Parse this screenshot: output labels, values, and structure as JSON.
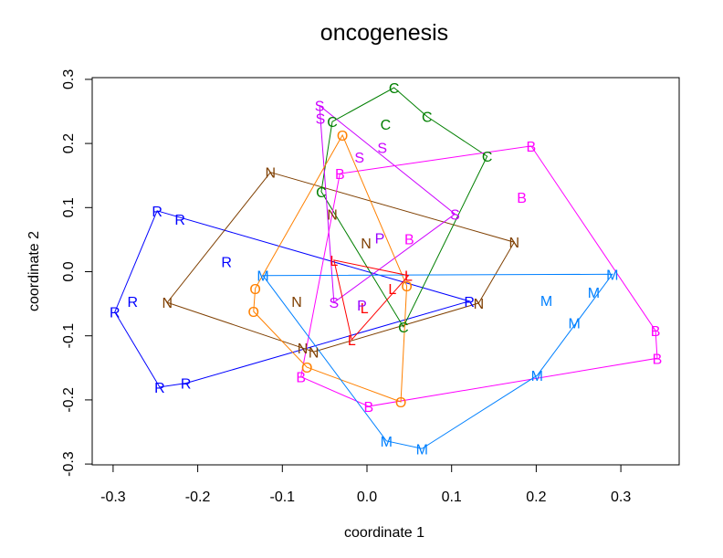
{
  "chart_data": {
    "type": "scatter",
    "title": "oncogenesis",
    "xlabel": "coordinate 1",
    "ylabel": "coordinate 2",
    "xlim": [
      -0.335,
      0.367
    ],
    "ylim": [
      -0.303,
      0.303
    ],
    "xticks": [
      -0.3,
      -0.2,
      -0.1,
      0.0,
      0.1,
      0.2,
      0.3
    ],
    "xtick_labels": [
      "-0.3",
      "-0.2",
      "-0.1",
      "0.0",
      "0.1",
      "0.2",
      "0.3"
    ],
    "yticks": [
      -0.3,
      -0.2,
      -0.1,
      0.0,
      0.1,
      0.2,
      0.3
    ],
    "ytick_labels": [
      "-0.3",
      "-0.2",
      "-0.1",
      "0.0",
      "0.1",
      "0.2",
      "0.3"
    ],
    "grid": false,
    "legend": "none",
    "series": [
      {
        "name": "R",
        "color": "#0000FF",
        "points": [
          [
            -0.248,
            0.095
          ],
          [
            -0.221,
            0.082
          ],
          [
            -0.166,
            0.016
          ],
          [
            -0.277,
            -0.046
          ],
          [
            -0.298,
            -0.063
          ],
          [
            -0.245,
            -0.18
          ],
          [
            -0.214,
            -0.174
          ],
          [
            0.121,
            -0.046
          ]
        ],
        "hull": [
          [
            -0.248,
            0.095
          ],
          [
            0.121,
            -0.046
          ],
          [
            -0.214,
            -0.174
          ],
          [
            -0.245,
            -0.18
          ],
          [
            -0.298,
            -0.063
          ]
        ]
      },
      {
        "name": "N",
        "color": "#7F3F00",
        "points": [
          [
            -0.114,
            0.155
          ],
          [
            0.174,
            0.046
          ],
          [
            0.132,
            -0.049
          ],
          [
            -0.236,
            -0.048
          ],
          [
            -0.076,
            -0.119
          ],
          [
            -0.063,
            -0.125
          ],
          [
            -0.041,
            0.09
          ],
          [
            -0.001,
            0.045
          ],
          [
            -0.083,
            -0.046
          ]
        ],
        "hull": [
          [
            -0.114,
            0.155
          ],
          [
            0.174,
            0.046
          ],
          [
            0.132,
            -0.049
          ],
          [
            -0.063,
            -0.125
          ],
          [
            -0.076,
            -0.119
          ],
          [
            -0.236,
            -0.048
          ]
        ]
      },
      {
        "name": "C",
        "color": "#007F00",
        "points": [
          [
            0.032,
            0.287
          ],
          [
            0.071,
            0.242
          ],
          [
            -0.041,
            0.234
          ],
          [
            0.022,
            0.23
          ],
          [
            0.142,
            0.18
          ],
          [
            -0.054,
            0.125
          ],
          [
            0.043,
            -0.086
          ]
        ],
        "hull": [
          [
            0.032,
            0.287
          ],
          [
            0.071,
            0.242
          ],
          [
            0.142,
            0.18
          ],
          [
            0.043,
            -0.086
          ],
          [
            -0.054,
            0.125
          ],
          [
            -0.041,
            0.234
          ]
        ]
      },
      {
        "name": "S",
        "color": "#CC00FF",
        "points": [
          [
            -0.056,
            0.259
          ],
          [
            -0.055,
            0.239
          ],
          [
            -0.009,
            0.179
          ],
          [
            0.018,
            0.194
          ],
          [
            0.104,
            0.09
          ],
          [
            -0.039,
            -0.048
          ]
        ],
        "hull": [
          [
            -0.056,
            0.259
          ],
          [
            0.104,
            0.09
          ],
          [
            -0.039,
            -0.048
          ],
          [
            -0.055,
            0.239
          ]
        ]
      },
      {
        "name": "B",
        "color": "#FF00FF",
        "points": [
          [
            -0.032,
            0.153
          ],
          [
            0.194,
            0.196
          ],
          [
            0.183,
            0.116
          ],
          [
            0.05,
            0.051
          ],
          [
            0.341,
            -0.092
          ],
          [
            0.343,
            -0.135
          ],
          [
            0.002,
            -0.21
          ],
          [
            -0.078,
            -0.164
          ]
        ],
        "hull": [
          [
            -0.032,
            0.153
          ],
          [
            0.194,
            0.196
          ],
          [
            0.341,
            -0.092
          ],
          [
            0.343,
            -0.135
          ],
          [
            0.002,
            -0.21
          ],
          [
            -0.078,
            -0.164
          ]
        ]
      },
      {
        "name": "O",
        "color": "#FF8000",
        "points": [
          [
            -0.029,
            0.213
          ],
          [
            0.047,
            -0.022
          ],
          [
            -0.132,
            -0.026
          ],
          [
            -0.134,
            -0.062
          ],
          [
            -0.071,
            -0.149
          ],
          [
            0.04,
            -0.203
          ]
        ],
        "hull": [
          [
            -0.029,
            0.213
          ],
          [
            0.047,
            -0.022
          ],
          [
            0.04,
            -0.203
          ],
          [
            -0.071,
            -0.149
          ],
          [
            -0.134,
            -0.062
          ],
          [
            -0.132,
            -0.026
          ]
        ]
      },
      {
        "name": "M",
        "color": "#0080FF",
        "points": [
          [
            -0.123,
            -0.006
          ],
          [
            0.29,
            -0.004
          ],
          [
            0.268,
            -0.032
          ],
          [
            0.212,
            -0.045
          ],
          [
            0.245,
            -0.08
          ],
          [
            0.201,
            -0.162
          ],
          [
            0.023,
            -0.264
          ],
          [
            0.065,
            -0.276
          ]
        ],
        "hull": [
          [
            -0.123,
            -0.006
          ],
          [
            0.29,
            -0.004
          ],
          [
            0.201,
            -0.162
          ],
          [
            0.065,
            -0.276
          ],
          [
            0.023,
            -0.264
          ]
        ]
      },
      {
        "name": "L",
        "color": "#FF0000",
        "points": [
          [
            -0.039,
            0.018
          ],
          [
            0.049,
            -0.006
          ],
          [
            0.03,
            -0.026
          ],
          [
            -0.003,
            -0.056
          ],
          [
            -0.018,
            -0.106
          ]
        ],
        "hull": [
          [
            -0.039,
            0.018
          ],
          [
            0.049,
            -0.006
          ],
          [
            -0.018,
            -0.106
          ]
        ]
      },
      {
        "name": "P",
        "color": "#9900FF",
        "points": [
          [
            0.015,
            0.053
          ],
          [
            -0.006,
            -0.052
          ]
        ],
        "hull": []
      }
    ]
  }
}
